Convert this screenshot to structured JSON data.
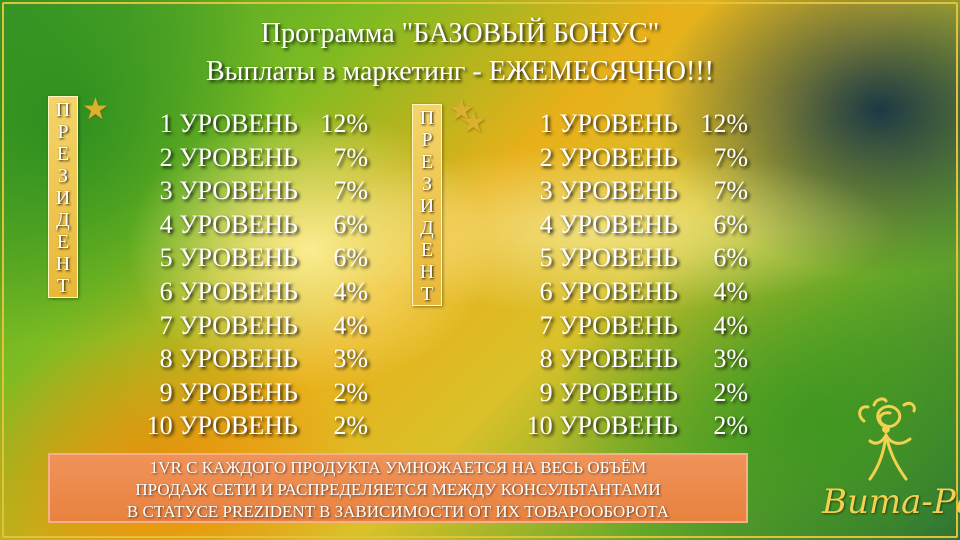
{
  "title_line1": "Программа \"БАЗОВЫЙ БОНУС\"",
  "title_line2": "Выплаты в маркетинг - ЕЖЕМЕСЯЧНО!!!",
  "vertical_label": [
    "П",
    "Р",
    "Е",
    "З",
    "И",
    "Д",
    "Е",
    "Н",
    "Т"
  ],
  "star_icon": "star-icon",
  "left_table": [
    {
      "level": "1 УРОВЕНЬ",
      "percent": "12%"
    },
    {
      "level": "2 УРОВЕНЬ",
      "percent": "7%"
    },
    {
      "level": "3 УРОВЕНЬ",
      "percent": "7%"
    },
    {
      "level": "4 УРОВЕНЬ",
      "percent": "6%"
    },
    {
      "level": "5 УРОВЕНЬ",
      "percent": "6%"
    },
    {
      "level": "6 УРОВЕНЬ",
      "percent": "4%"
    },
    {
      "level": "7 УРОВЕНЬ",
      "percent": "4%"
    },
    {
      "level": "8 УРОВЕНЬ",
      "percent": "3%"
    },
    {
      "level": "9 УРОВЕНЬ",
      "percent": "2%"
    },
    {
      "level": "10 УРОВЕНЬ",
      "percent": "2%"
    }
  ],
  "right_table": [
    {
      "level": "1 УРОВЕНЬ",
      "percent": "12%"
    },
    {
      "level": "2 УРОВЕНЬ",
      "percent": "7%"
    },
    {
      "level": "3 УРОВЕНЬ",
      "percent": "7%"
    },
    {
      "level": "4 УРОВЕНЬ",
      "percent": "6%"
    },
    {
      "level": "5 УРОВЕНЬ",
      "percent": "6%"
    },
    {
      "level": "6 УРОВЕНЬ",
      "percent": "4%"
    },
    {
      "level": "7 УРОВЕНЬ",
      "percent": "4%"
    },
    {
      "level": "8 УРОВЕНЬ",
      "percent": "3%"
    },
    {
      "level": "9 УРОВЕНЬ",
      "percent": "2%"
    },
    {
      "level": "10 УРОВЕНЬ",
      "percent": "2%"
    }
  ],
  "bottom_note": [
    "1VR С КАЖДОГО ПРОДУКТА УМНОЖАЕТСЯ НА ВЕСЬ ОБЪЁМ",
    "ПРОДАЖ СЕТИ И РАСПРЕДЕЛЯЕТСЯ МЕЖДУ КОНСУЛЬТАНТАМИ",
    "В СТАТУСЕ PREZIDENT В ЗАВИСИМОСТИ ОТ ИХ ТОВАРООБОРОТА"
  ],
  "logo_text": "Вита-Ра",
  "colors": {
    "accent_gold": "#e8b838",
    "note_orange": "#e8823e",
    "logo_gold": "#f2d050"
  }
}
